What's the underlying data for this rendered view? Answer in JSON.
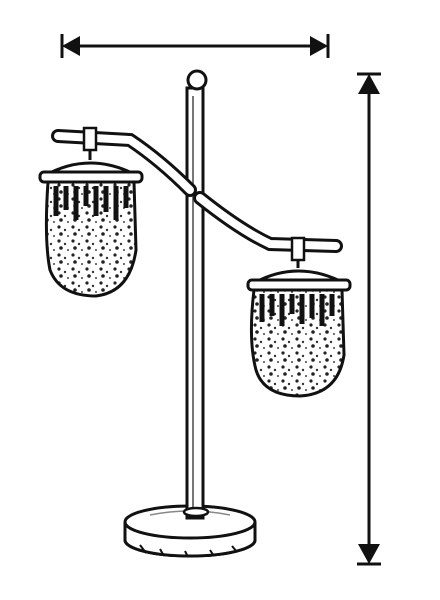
{
  "colors": {
    "ink": "#111111",
    "paper": "#ffffff",
    "shade": "#8a8a8a"
  },
  "dimension_arrows": {
    "width_arrow": "double-headed-horizontal-arrow",
    "height_arrow": "double-headed-vertical-arrow"
  },
  "illustration": {
    "subject": "two-lantern-lamp-icon"
  }
}
